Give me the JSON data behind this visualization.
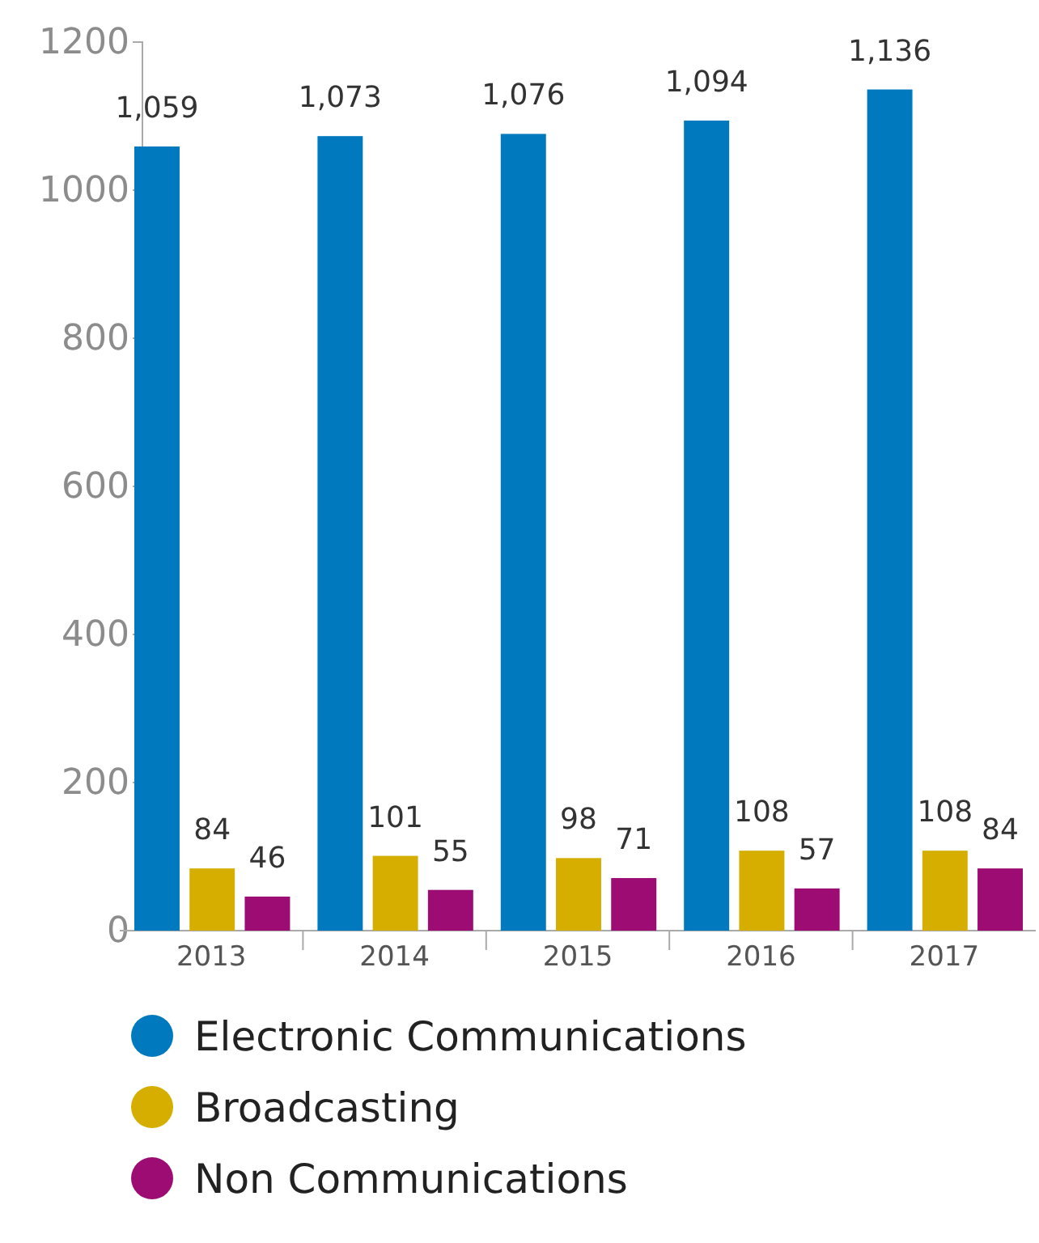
{
  "chart_data": {
    "type": "bar",
    "categories": [
      "2013",
      "2014",
      "2015",
      "2016",
      "2017"
    ],
    "series": [
      {
        "name": "Electronic Communications",
        "color": "#0079be",
        "values": [
          1059,
          1073,
          1076,
          1094,
          1136
        ],
        "value_labels": [
          "1,059",
          "1,073",
          "1,076",
          "1,094",
          "1,136"
        ]
      },
      {
        "name": "Broadcasting",
        "color": "#d6ae00",
        "values": [
          84,
          101,
          98,
          108,
          108
        ],
        "value_labels": [
          "84",
          "101",
          "98",
          "108",
          "108"
        ]
      },
      {
        "name": "Non Communications",
        "color": "#9c0c72",
        "values": [
          46,
          55,
          71,
          57,
          84
        ],
        "value_labels": [
          "46",
          "55",
          "71",
          "57",
          "84"
        ]
      }
    ],
    "ylim": [
      0,
      1200
    ],
    "yticks": [
      0,
      200,
      400,
      600,
      800,
      1000,
      1200
    ],
    "legend": "bottom",
    "grid": false
  }
}
